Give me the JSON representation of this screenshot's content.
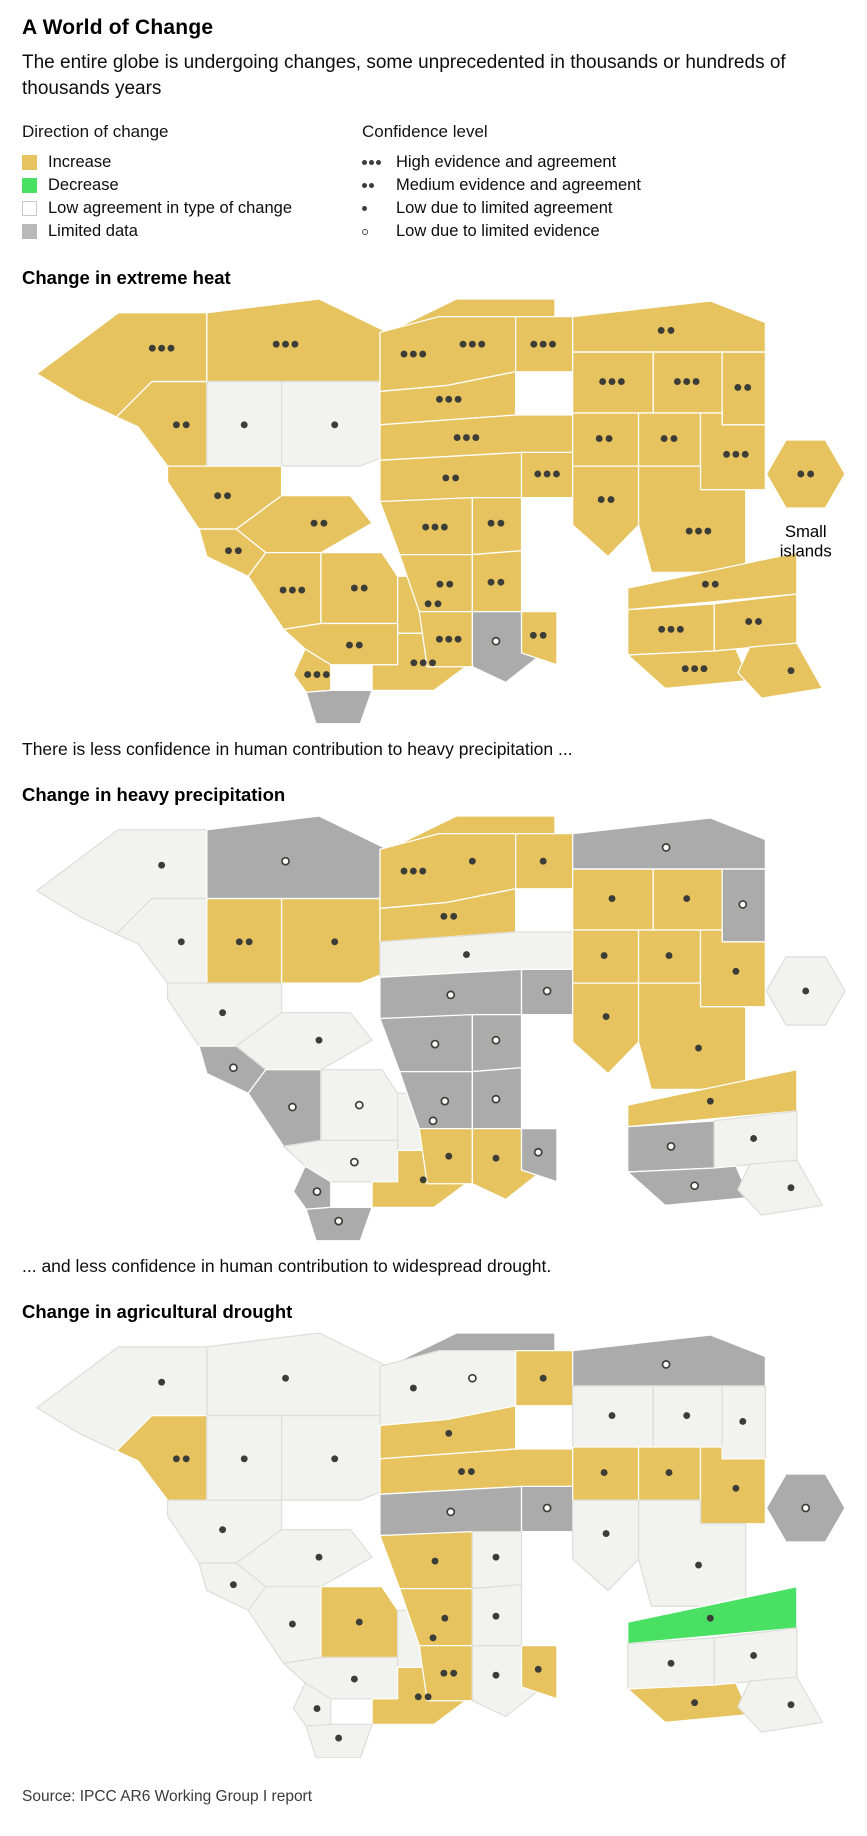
{
  "header": {
    "title": "A World of Change",
    "subtitle": "The entire globe is undergoing changes, some unprecedented in thousands or hundreds of thousands years"
  },
  "legend": {
    "direction_label": "Direction of change",
    "confidence_label": "Confidence level",
    "direction_items": [
      {
        "key": "increase",
        "label": "Increase"
      },
      {
        "key": "decrease",
        "label": "Decrease"
      },
      {
        "key": "low",
        "label": "Low agreement in type of change"
      },
      {
        "key": "limited",
        "label": "Limited data"
      }
    ],
    "confidence_items": [
      {
        "key": "high",
        "label": "High evidence and agreement"
      },
      {
        "key": "medium",
        "label": "Medium evidence and agreement"
      },
      {
        "key": "low-agreement",
        "label": "Low due to limited agreement"
      },
      {
        "key": "low-evidence",
        "label": "Low due to limited evidence"
      }
    ]
  },
  "colors": {
    "increase": "#e6c35e",
    "decrease": "#4ae063",
    "low_agreement": "#f2f2ef",
    "limited": "#ababab",
    "dot": "#3d3d38",
    "low_border": "#c9c9c9",
    "region_stroke": "#ffffff",
    "low_region_stroke": "#dededa"
  },
  "source": "Source: IPCC AR6 Working Group I report",
  "chart_data": {
    "type": "choropleth",
    "legend_position": "top",
    "direction_categories": [
      "Increase",
      "Decrease",
      "Low agreement in type of change",
      "Limited data"
    ],
    "confidence_categories": [
      "High evidence and agreement",
      "Medium evidence and agreement",
      "Low due to limited agreement",
      "Low due to limited evidence"
    ],
    "maps": [
      {
        "title": "Change in extreme heat",
        "note_after": "There is less confidence in human contribution to heavy precipitation ...",
        "small_islands_label": "Small islands",
        "small_islands": [
          "increase",
          "medium"
        ],
        "regions": {
          "NWN": [
            "increase",
            "high"
          ],
          "NEN": [
            "increase",
            "high"
          ],
          "GIC": [
            "increase",
            "high"
          ],
          "WNA": [
            "increase",
            "medium"
          ],
          "CNA": [
            "low",
            "low-agreement"
          ],
          "ENA": [
            "low",
            "low-agreement"
          ],
          "NCA": [
            "increase",
            "medium"
          ],
          "SCA": [
            "increase",
            "medium"
          ],
          "CAR": [
            "increase",
            "medium"
          ],
          "NWS": [
            "increase",
            "high"
          ],
          "NSA": [
            "increase",
            "medium"
          ],
          "NES": [
            "increase",
            "medium"
          ],
          "SAM": [
            "increase",
            "medium"
          ],
          "SES": [
            "increase",
            "high"
          ],
          "SWS": [
            "increase",
            "high"
          ],
          "SSA": [
            "limited",
            "none"
          ],
          "NEU": [
            "increase",
            "high"
          ],
          "EEU": [
            "increase",
            "high"
          ],
          "WCE": [
            "increase",
            "high"
          ],
          "MED": [
            "increase",
            "high"
          ],
          "SAH": [
            "increase",
            "medium"
          ],
          "ARP": [
            "increase",
            "high"
          ],
          "WAF": [
            "increase",
            "high"
          ],
          "NEAF": [
            "increase",
            "medium"
          ],
          "CAF": [
            "increase",
            "medium"
          ],
          "SEAF": [
            "increase",
            "medium"
          ],
          "WSAF": [
            "increase",
            "high"
          ],
          "ESAF": [
            "limited",
            "low-evidence"
          ],
          "MDG": [
            "increase",
            "medium"
          ],
          "RAR": [
            "increase",
            "medium"
          ],
          "WSB": [
            "increase",
            "high"
          ],
          "ESB": [
            "increase",
            "high"
          ],
          "RFE": [
            "increase",
            "medium"
          ],
          "WCA": [
            "increase",
            "medium"
          ],
          "TIB": [
            "increase",
            "medium"
          ],
          "EAS": [
            "increase",
            "high"
          ],
          "SAS": [
            "increase",
            "medium"
          ],
          "SEA": [
            "increase",
            "high"
          ],
          "NAU": [
            "increase",
            "medium"
          ],
          "CAU": [
            "increase",
            "high"
          ],
          "EAU": [
            "increase",
            "medium"
          ],
          "SAU": [
            "increase",
            "high"
          ],
          "NZ": [
            "increase",
            "low-agreement"
          ]
        }
      },
      {
        "title": "Change in heavy precipitation",
        "note_after": "... and less confidence in human contribution to widespread drought.",
        "small_islands": [
          "low",
          "low-agreement"
        ],
        "regions": {
          "NWN": [
            "low",
            "low-agreement"
          ],
          "NEN": [
            "limited",
            "low-evidence"
          ],
          "GIC": [
            "increase",
            "low-agreement"
          ],
          "WNA": [
            "low",
            "low-agreement"
          ],
          "CNA": [
            "increase",
            "medium"
          ],
          "ENA": [
            "increase",
            "low-agreement"
          ],
          "NCA": [
            "low",
            "low-agreement"
          ],
          "SCA": [
            "limited",
            "low-evidence"
          ],
          "CAR": [
            "low",
            "low-agreement"
          ],
          "NWS": [
            "limited",
            "low-evidence"
          ],
          "NSA": [
            "low",
            "low-evidence"
          ],
          "NES": [
            "low",
            "low-evidence"
          ],
          "SAM": [
            "low",
            "low-evidence"
          ],
          "SES": [
            "increase",
            "low-agreement"
          ],
          "SWS": [
            "limited",
            "low-evidence"
          ],
          "SSA": [
            "limited",
            "low-evidence"
          ],
          "NEU": [
            "increase",
            "high"
          ],
          "EEU": [
            "increase",
            "low-agreement"
          ],
          "WCE": [
            "increase",
            "medium"
          ],
          "MED": [
            "low",
            "low-agreement"
          ],
          "SAH": [
            "limited",
            "low-evidence"
          ],
          "ARP": [
            "limited",
            "low-evidence"
          ],
          "WAF": [
            "limited",
            "low-evidence"
          ],
          "NEAF": [
            "limited",
            "low-evidence"
          ],
          "CAF": [
            "limited",
            "low-evidence"
          ],
          "SEAF": [
            "limited",
            "low-evidence"
          ],
          "WSAF": [
            "increase",
            "low-agreement"
          ],
          "ESAF": [
            "increase",
            "low-agreement"
          ],
          "MDG": [
            "limited",
            "low-evidence"
          ],
          "RAR": [
            "limited",
            "low-evidence"
          ],
          "WSB": [
            "increase",
            "low-agreement"
          ],
          "ESB": [
            "increase",
            "low-agreement"
          ],
          "RFE": [
            "limited",
            "low-evidence"
          ],
          "WCA": [
            "increase",
            "low-agreement"
          ],
          "TIB": [
            "increase",
            "low-agreement"
          ],
          "EAS": [
            "increase",
            "low-agreement"
          ],
          "SAS": [
            "increase",
            "low-agreement"
          ],
          "SEA": [
            "increase",
            "low-agreement"
          ],
          "NAU": [
            "increase",
            "low-agreement"
          ],
          "CAU": [
            "limited",
            "low-evidence"
          ],
          "EAU": [
            "low",
            "low-agreement"
          ],
          "SAU": [
            "limited",
            "low-evidence"
          ],
          "NZ": [
            "low",
            "low-agreement"
          ]
        }
      },
      {
        "title": "Change in agricultural drought",
        "small_islands": [
          "limited",
          "low-evidence"
        ],
        "regions": {
          "NWN": [
            "low",
            "low-agreement"
          ],
          "NEN": [
            "low",
            "low-agreement"
          ],
          "GIC": [
            "limited",
            "low-evidence"
          ],
          "WNA": [
            "increase",
            "medium"
          ],
          "CNA": [
            "low",
            "low-agreement"
          ],
          "ENA": [
            "low",
            "low-agreement"
          ],
          "NCA": [
            "low",
            "low-agreement"
          ],
          "SCA": [
            "low",
            "low-agreement"
          ],
          "CAR": [
            "low",
            "low-agreement"
          ],
          "NWS": [
            "low",
            "low-agreement"
          ],
          "NSA": [
            "increase",
            "low-agreement"
          ],
          "NES": [
            "low",
            "low-agreement"
          ],
          "SAM": [
            "low",
            "low-agreement"
          ],
          "SES": [
            "increase",
            "medium"
          ],
          "SWS": [
            "low",
            "low-agreement"
          ],
          "SSA": [
            "low",
            "low-agreement"
          ],
          "NEU": [
            "low",
            "low-agreement"
          ],
          "EEU": [
            "increase",
            "low-agreement"
          ],
          "WCE": [
            "increase",
            "low-agreement"
          ],
          "MED": [
            "increase",
            "medium"
          ],
          "SAH": [
            "limited",
            "low-evidence"
          ],
          "ARP": [
            "limited",
            "low-evidence"
          ],
          "WAF": [
            "increase",
            "low-agreement"
          ],
          "NEAF": [
            "low",
            "low-agreement"
          ],
          "CAF": [
            "increase",
            "low-agreement"
          ],
          "SEAF": [
            "low",
            "low-agreement"
          ],
          "WSAF": [
            "increase",
            "medium"
          ],
          "ESAF": [
            "low",
            "low-agreement"
          ],
          "MDG": [
            "increase",
            "low-agreement"
          ],
          "RAR": [
            "limited",
            "low-evidence"
          ],
          "WSB": [
            "low",
            "low-agreement"
          ],
          "ESB": [
            "low",
            "low-agreement"
          ],
          "RFE": [
            "low",
            "low-agreement"
          ],
          "WCA": [
            "increase",
            "low-agreement"
          ],
          "TIB": [
            "increase",
            "low-agreement"
          ],
          "EAS": [
            "increase",
            "low-agreement"
          ],
          "SAS": [
            "low",
            "low-agreement"
          ],
          "SEA": [
            "low",
            "low-agreement"
          ],
          "NAU": [
            "decrease",
            "low-agreement"
          ],
          "CAU": [
            "low",
            "low-agreement"
          ],
          "EAU": [
            "low",
            "low-agreement"
          ],
          "SAU": [
            "increase",
            "low-agreement"
          ],
          "NZ": [
            "low",
            "low-agreement"
          ]
        }
      }
    ]
  }
}
